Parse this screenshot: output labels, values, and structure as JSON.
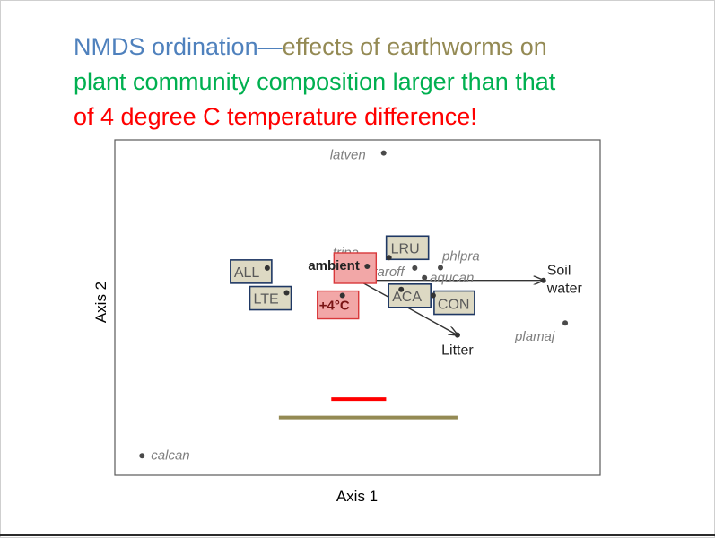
{
  "slide": {
    "title_segments": [
      {
        "text": "NMDS ordination—",
        "color": "#4f81bd"
      },
      {
        "text": "effects of earthworms on",
        "color": "#948a54"
      },
      {
        "text": "plant community composition larger than that",
        "color": "#00b050"
      },
      {
        "text": "of 4 degree C temperature difference!",
        "color": "#ff0000"
      }
    ]
  },
  "chart_data": {
    "type": "scatter",
    "xlabel": "Axis 1",
    "ylabel": "Axis 2",
    "xlim": [
      0,
      1
    ],
    "ylim": [
      0,
      1
    ],
    "species": [
      {
        "label": "latven",
        "x": 0.554,
        "y": 0.961
      },
      {
        "label": "tripa",
        "x": 0.508,
        "y": 0.632
      },
      {
        "label": "taroff",
        "x": 0.618,
        "y": 0.618
      },
      {
        "label": "phlpra",
        "x": 0.671,
        "y": 0.619
      },
      {
        "label": "aqucan",
        "x": 0.638,
        "y": 0.589
      },
      {
        "label": "plamaj",
        "x": 0.928,
        "y": 0.454
      },
      {
        "label": "calcan",
        "x": 0.056,
        "y": 0.058
      }
    ],
    "groups": [
      {
        "label": "LRU",
        "kind": "earthworm",
        "x": 0.565,
        "y": 0.649
      },
      {
        "label": "ALL",
        "kind": "earthworm",
        "x": 0.314,
        "y": 0.618
      },
      {
        "label": "LTE",
        "kind": "earthworm",
        "x": 0.354,
        "y": 0.544
      },
      {
        "label": "ACA",
        "kind": "earthworm",
        "x": 0.59,
        "y": 0.554
      },
      {
        "label": "CON",
        "kind": "earthworm",
        "x": 0.656,
        "y": 0.536
      },
      {
        "label": "ambient",
        "kind": "temperature",
        "x": 0.52,
        "y": 0.623
      },
      {
        "label": "+4°C",
        "kind": "temperature",
        "x": 0.469,
        "y": 0.536
      }
    ],
    "vectors": [
      {
        "label": "Soil water",
        "x": 0.883,
        "y": 0.581
      },
      {
        "label": "Litter",
        "x": 0.706,
        "y": 0.418
      }
    ],
    "vector_origin": {
      "x": 0.502,
      "y": 0.581
    },
    "effect_bars": [
      {
        "name": "temperature",
        "color": "#ff0000",
        "from": 0.446,
        "to": 0.559,
        "y": 0.227
      },
      {
        "name": "earthworm",
        "color": "#948a54",
        "from": 0.338,
        "to": 0.706,
        "y": 0.172
      }
    ],
    "colors": {
      "earthworm_fill": "#ddd9c3",
      "earthworm_stroke": "#1f3864",
      "temperature_fill": "#f2a7a7",
      "temperature_stroke": "#d9383a",
      "point": "#4a4a4a",
      "species_text": "#7f7f7f",
      "axis_text": "#404040"
    },
    "grid": false,
    "legend": "none"
  }
}
